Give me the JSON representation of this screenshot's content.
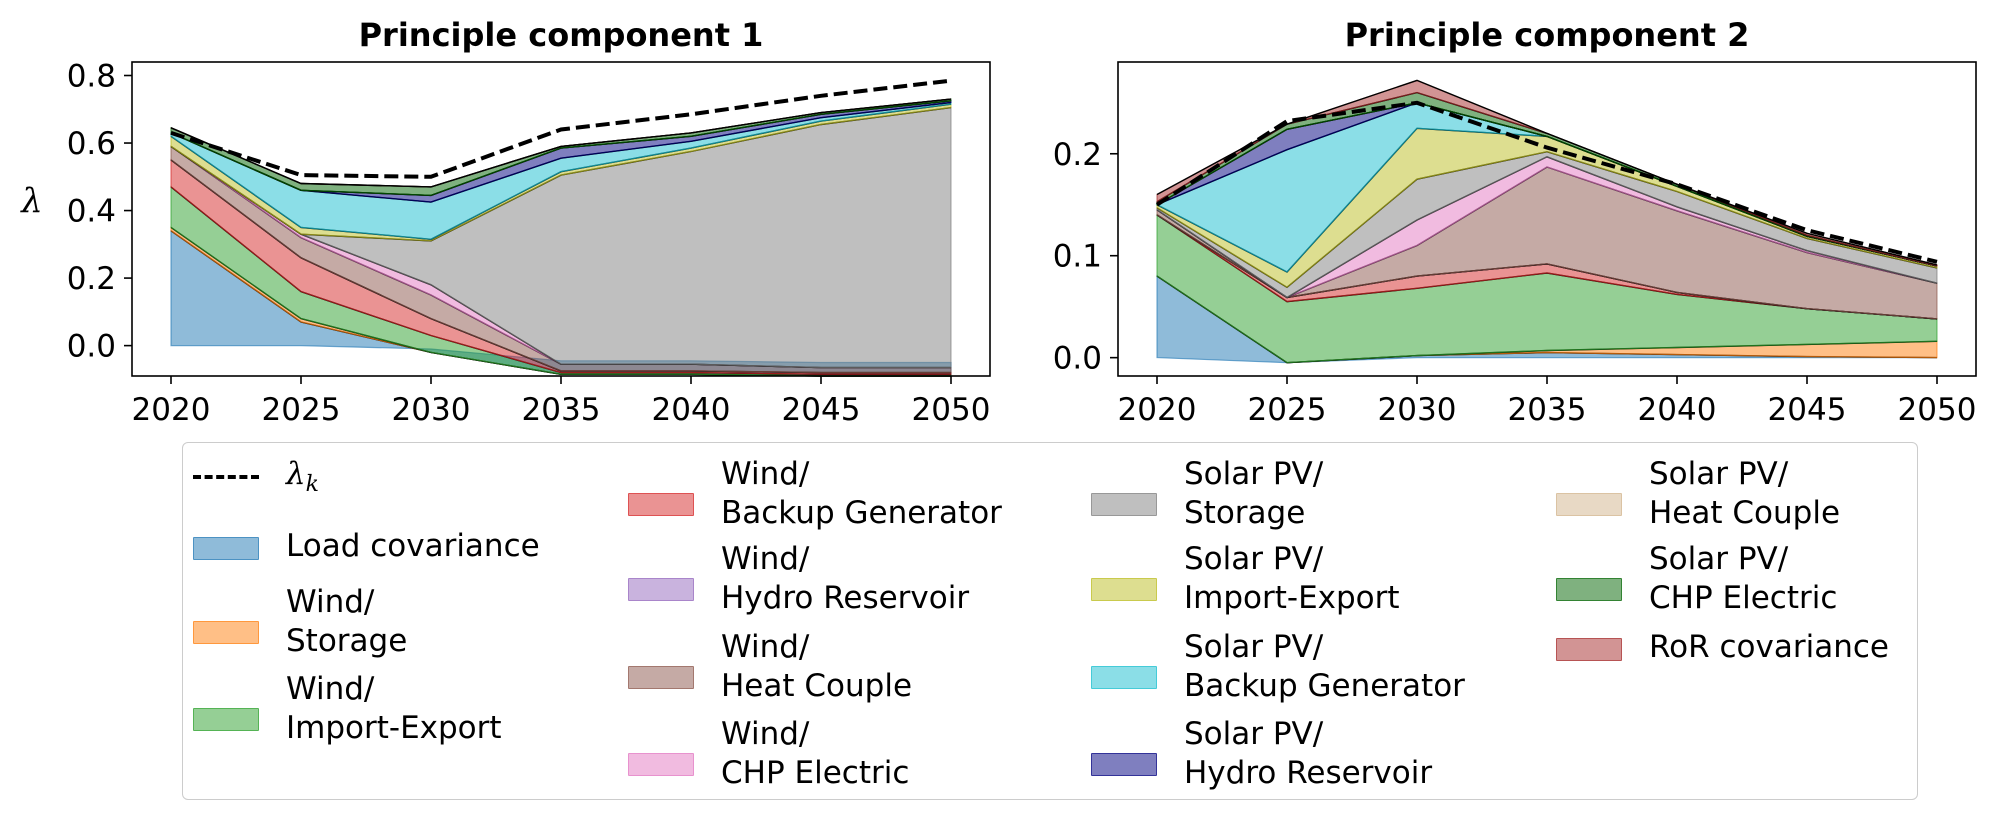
{
  "chart_data": [
    {
      "type": "area",
      "title": "Principle component 1",
      "xlabel": "",
      "ylabel": "λ",
      "x": [
        2020,
        2025,
        2030,
        2035,
        2040,
        2045,
        2050
      ],
      "xticks": [
        "2020",
        "2025",
        "2030",
        "2035",
        "2040",
        "2045",
        "2050"
      ],
      "yticks": [
        "0.0",
        "0.2",
        "0.4",
        "0.6",
        "0.8"
      ],
      "ylim": [
        -0.09,
        0.84
      ],
      "stacked": true,
      "negative_start": [
        0.0,
        0.0,
        -0.01,
        -0.045,
        -0.045,
        -0.05,
        -0.05
      ],
      "series": [
        {
          "name": "Load covariance",
          "values": [
            0.34,
            0.07,
            -0.01,
            -0.04,
            -0.04,
            -0.04,
            -0.04
          ]
        },
        {
          "name": "Wind/\nStorage",
          "values": [
            0.01,
            0.01,
            0.0,
            0.0,
            0.0,
            0.0,
            0.0
          ]
        },
        {
          "name": "Wind/\nImport-Export",
          "values": [
            0.12,
            0.08,
            0.05,
            0.005,
            0.005,
            0.005,
            0.005
          ]
        },
        {
          "name": "Wind/\nBackup Generator",
          "values": [
            0.08,
            0.1,
            0.05,
            0.005,
            0.005,
            0.005,
            0.005
          ]
        },
        {
          "name": "Wind/\nHydro Reservoir",
          "values": [
            0.0,
            0.0,
            0.0,
            0.0,
            0.0,
            0.0,
            0.0
          ]
        },
        {
          "name": "Wind/\nHeat Couple",
          "values": [
            0.04,
            0.06,
            0.07,
            0.02,
            0.02,
            0.015,
            0.015
          ]
        },
        {
          "name": "Wind/\nCHP Electric",
          "values": [
            0.0,
            0.01,
            0.03,
            0.0,
            0.0,
            0.0,
            0.0
          ]
        },
        {
          "name": "Solar PV/\nStorage",
          "values": [
            0.0,
            0.0,
            0.13,
            0.56,
            0.63,
            0.72,
            0.77
          ]
        },
        {
          "name": "Solar PV/\nImport-Export",
          "values": [
            0.03,
            0.02,
            0.005,
            0.01,
            0.01,
            0.01,
            0.01
          ]
        },
        {
          "name": "Solar PV/\nBackup Generator",
          "values": [
            0.01,
            0.11,
            0.11,
            0.04,
            0.02,
            0.01,
            0.005
          ]
        },
        {
          "name": "Solar PV/\nHydro Reservoir",
          "values": [
            0.0,
            0.0,
            0.02,
            0.03,
            0.015,
            0.01,
            0.005
          ]
        },
        {
          "name": "Solar PV/\nHeat Couple",
          "values": [
            0.0,
            0.0,
            0.0,
            0.0,
            0.0,
            0.0,
            0.0
          ]
        },
        {
          "name": "Solar PV/\nCHP Electric",
          "values": [
            0.015,
            0.02,
            0.025,
            0.005,
            0.01,
            0.005,
            0.005
          ]
        },
        {
          "name": "RoR covariance",
          "values": [
            0.0,
            0.0,
            0.0,
            0.0,
            0.0,
            0.0,
            0.0
          ]
        }
      ],
      "lambda_k": [
        0.63,
        0.505,
        0.5,
        0.64,
        0.685,
        0.74,
        0.785
      ]
    },
    {
      "type": "area",
      "title": "Principle component 2",
      "xlabel": "",
      "ylabel": "",
      "x": [
        2020,
        2025,
        2030,
        2035,
        2040,
        2045,
        2050
      ],
      "xticks": [
        "2020",
        "2025",
        "2030",
        "2035",
        "2040",
        "2045",
        "2050"
      ],
      "yticks": [
        "0.0",
        "0.1",
        "0.2"
      ],
      "ylim": [
        -0.018,
        0.29
      ],
      "stacked": true,
      "negative_start": [
        0.0,
        -0.005,
        0.0,
        0.0,
        0.0,
        0.0,
        0.0
      ],
      "series": [
        {
          "name": "Load covariance",
          "values": [
            0.08,
            0.0,
            0.002,
            0.005,
            0.003,
            0.001,
            0.0
          ]
        },
        {
          "name": "Wind/\nStorage",
          "values": [
            0.0,
            0.0,
            0.0,
            0.002,
            0.007,
            0.012,
            0.016
          ]
        },
        {
          "name": "Wind/\nImport-Export",
          "values": [
            0.06,
            0.06,
            0.066,
            0.076,
            0.052,
            0.035,
            0.022
          ]
        },
        {
          "name": "Wind/\nBackup Generator",
          "values": [
            0.0,
            0.004,
            0.012,
            0.009,
            0.002,
            0.0,
            0.0
          ]
        },
        {
          "name": "Wind/\nHydro Reservoir",
          "values": [
            0.0,
            0.0,
            0.0,
            0.0,
            0.0,
            0.0,
            0.0
          ]
        },
        {
          "name": "Wind/\nHeat Couple",
          "values": [
            0.005,
            0.0,
            0.03,
            0.095,
            0.08,
            0.055,
            0.035
          ]
        },
        {
          "name": "Wind/\nCHP Electric",
          "values": [
            0.0,
            0.0,
            0.025,
            0.01,
            0.004,
            0.002,
            0.0
          ]
        },
        {
          "name": "Solar PV/\nStorage",
          "values": [
            0.002,
            0.01,
            0.04,
            0.005,
            0.015,
            0.012,
            0.015
          ]
        },
        {
          "name": "Solar PV/\nImport-Export",
          "values": [
            0.003,
            0.015,
            0.05,
            0.015,
            0.005,
            0.002,
            0.002
          ]
        },
        {
          "name": "Solar PV/\nBackup Generator",
          "values": [
            0.0,
            0.12,
            0.025,
            0.0,
            0.0,
            0.0,
            0.0
          ]
        },
        {
          "name": "Solar PV/\nHydro Reservoir",
          "values": [
            0.0,
            0.02,
            0.0,
            0.0,
            0.0,
            0.0,
            0.0
          ]
        },
        {
          "name": "Solar PV/\nHeat Couple",
          "values": [
            0.0,
            0.0,
            0.0,
            0.0,
            0.0,
            0.0,
            0.0
          ]
        },
        {
          "name": "Solar PV/\nCHP Electric",
          "values": [
            0.003,
            0.005,
            0.01,
            0.003,
            0.002,
            0.001,
            0.0
          ]
        },
        {
          "name": "RoR covariance",
          "values": [
            0.007,
            0.0,
            0.012,
            0.0,
            0.0,
            0.002,
            0.001
          ]
        }
      ],
      "lambda_k": [
        0.15,
        0.232,
        0.25,
        0.206,
        0.17,
        0.125,
        0.094
      ]
    }
  ],
  "legend": {
    "lambda_label": "λ",
    "lambda_subscript": "k",
    "placement": "bottom",
    "columns": 4
  },
  "colors": {
    "Load covariance": "#1f77b4",
    "Wind/\nStorage": "#ff7f0e",
    "Wind/\nImport-Export": "#2ca02c",
    "Wind/\nBackup Generator": "#d62728",
    "Wind/\nHydro Reservoir": "#9467bd",
    "Wind/\nHeat Couple": "#8c564b",
    "Wind/\nCHP Electric": "#e377c2",
    "Solar PV/\nStorage": "#7f7f7f",
    "Solar PV/\nImport-Export": "#bcbd22",
    "Solar PV/\nBackup Generator": "#17becf",
    "Solar PV/\nHydro Reservoir": "#000080",
    "Solar PV/\nHeat Couple": "#d2b48c",
    "Solar PV/\nCHP Electric": "#006400",
    "RoR covariance": "#a52a2a"
  }
}
